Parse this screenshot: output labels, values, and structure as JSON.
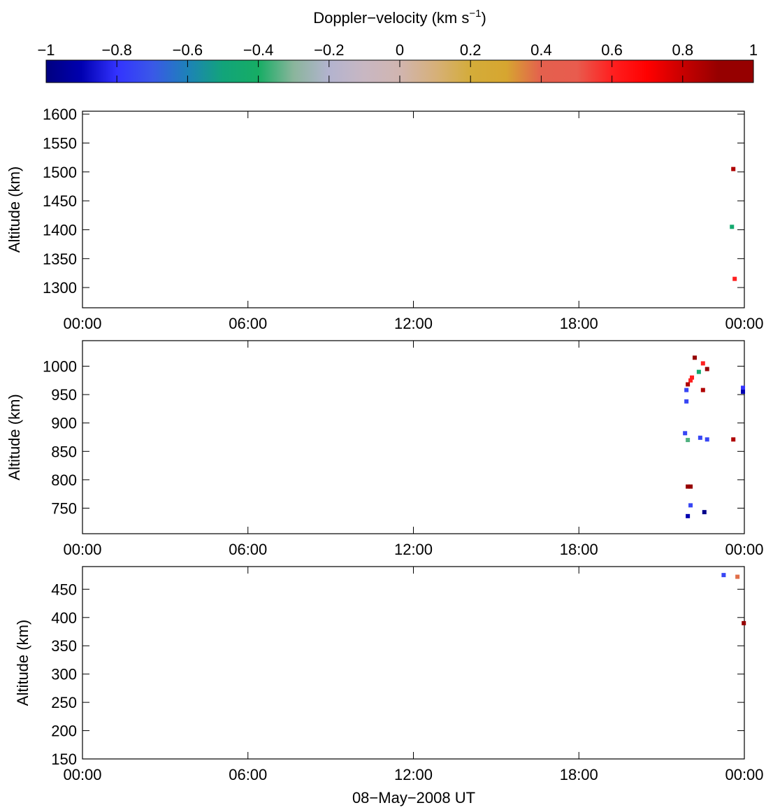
{
  "colorbar": {
    "title": "Doppler−velocity (km s",
    "title_sup": "−1",
    "title_close": ")",
    "range": [
      -1,
      1
    ],
    "ticks": [
      -1,
      -0.8,
      -0.6,
      -0.4,
      -0.2,
      0,
      0.2,
      0.4,
      0.6,
      0.8,
      1
    ],
    "tick_labels": [
      "−1",
      "−0.8",
      "−0.6",
      "−0.4",
      "−0.2",
      "0",
      "0.2",
      "0.4",
      "0.6",
      "0.8",
      "1"
    ],
    "colors": [
      "#000080",
      "#0000b0",
      "#3333ff",
      "#3a58e8",
      "#1d82b8",
      "#12a47a",
      "#16ad64",
      "#8ab59c",
      "#b3b3cf",
      "#c8b7c2",
      "#d1b5b0",
      "#d6b07a",
      "#d4ac3a",
      "#d6a630",
      "#e4604e",
      "#e85c4e",
      "#ff2020",
      "#ff0000",
      "#c80000",
      "#960000",
      "#960000"
    ]
  },
  "xaxis": {
    "xlabel": "08−May−2008 UT",
    "ticks": [
      0,
      6,
      12,
      18,
      24
    ],
    "tick_labels": [
      "00:00",
      "06:00",
      "12:00",
      "18:00",
      "00:00"
    ]
  },
  "chart_data": [
    {
      "type": "scatter",
      "ylabel": "Altitude (km)",
      "xlim": [
        0,
        24
      ],
      "ylim": [
        1265,
        1605
      ],
      "yticks": [
        1300,
        1350,
        1400,
        1450,
        1500,
        1550,
        1600
      ],
      "points": [
        {
          "t": 23.6,
          "alt": 1505,
          "v": 0.85
        },
        {
          "t": 23.55,
          "alt": 1405,
          "v": -0.45
        },
        {
          "t": 23.65,
          "alt": 1315,
          "v": 0.6
        }
      ]
    },
    {
      "type": "scatter",
      "ylabel": "Altitude (km)",
      "xlim": [
        0,
        24
      ],
      "ylim": [
        705,
        1045
      ],
      "yticks": [
        750,
        800,
        850,
        900,
        950,
        1000
      ],
      "points": [
        {
          "t": 22.2,
          "alt": 1015,
          "v": 0.98
        },
        {
          "t": 22.65,
          "alt": 995,
          "v": 0.95
        },
        {
          "t": 22.5,
          "alt": 1005,
          "v": 0.6
        },
        {
          "t": 22.35,
          "alt": 990,
          "v": -0.45
        },
        {
          "t": 22.1,
          "alt": 980,
          "v": 0.6
        },
        {
          "t": 22.05,
          "alt": 975,
          "v": 0.6
        },
        {
          "t": 21.95,
          "alt": 968,
          "v": 0.85
        },
        {
          "t": 21.9,
          "alt": 958,
          "v": -0.75
        },
        {
          "t": 22.5,
          "alt": 958,
          "v": 0.85
        },
        {
          "t": 23.95,
          "alt": 962,
          "v": -0.8
        },
        {
          "t": 23.95,
          "alt": 955,
          "v": -0.9
        },
        {
          "t": 21.9,
          "alt": 938,
          "v": -0.75
        },
        {
          "t": 21.85,
          "alt": 882,
          "v": -0.75
        },
        {
          "t": 21.95,
          "alt": 870,
          "v": -0.35
        },
        {
          "t": 22.4,
          "alt": 874,
          "v": -0.75
        },
        {
          "t": 22.65,
          "alt": 871,
          "v": -0.75
        },
        {
          "t": 23.6,
          "alt": 871,
          "v": 0.85
        },
        {
          "t": 21.95,
          "alt": 788,
          "v": 0.98
        },
        {
          "t": 22.05,
          "alt": 788,
          "v": 0.95
        },
        {
          "t": 22.05,
          "alt": 755,
          "v": -0.75
        },
        {
          "t": 21.95,
          "alt": 736,
          "v": -0.9
        },
        {
          "t": 22.55,
          "alt": 743,
          "v": -0.98
        }
      ]
    },
    {
      "type": "scatter",
      "ylabel": "Altitude (km)",
      "xlim": [
        0,
        24
      ],
      "ylim": [
        150,
        490
      ],
      "yticks": [
        150,
        200,
        250,
        300,
        350,
        400,
        450
      ],
      "points": [
        {
          "t": 23.25,
          "alt": 475,
          "v": -0.75
        },
        {
          "t": 23.75,
          "alt": 472,
          "v": 0.38
        },
        {
          "t": 23.98,
          "alt": 390,
          "v": 0.95
        }
      ]
    }
  ]
}
